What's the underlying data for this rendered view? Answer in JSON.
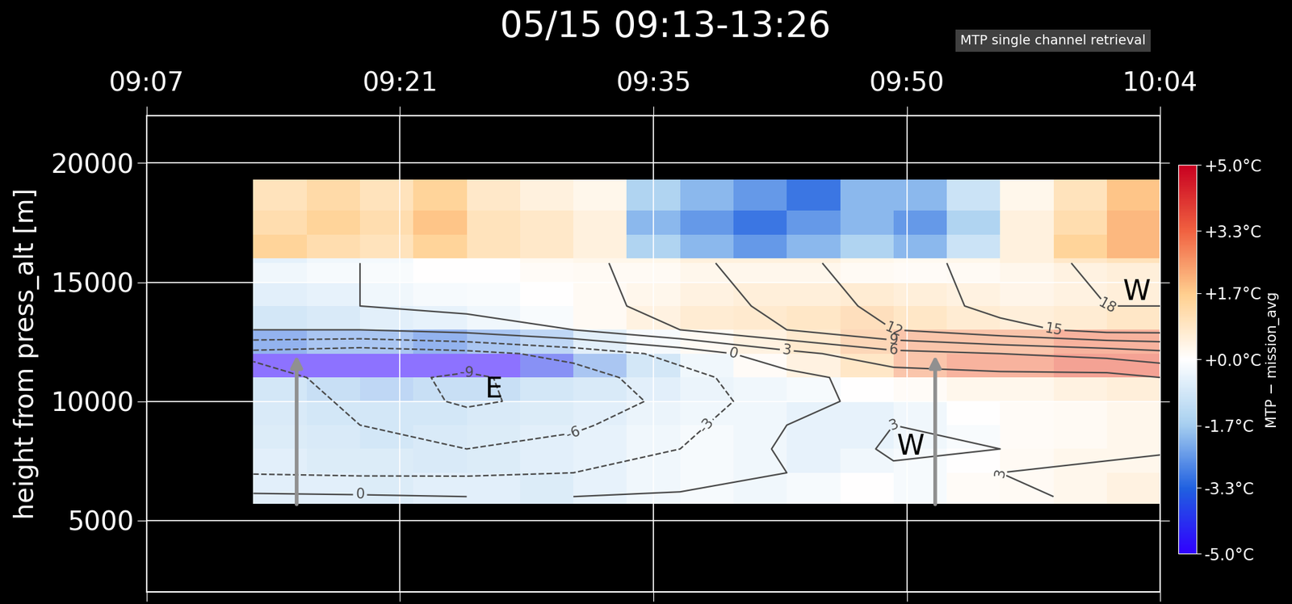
{
  "chart_data": {
    "type": "heatmap",
    "title": "05/15 09:13-13:26",
    "subtitle": "MTP single channel retrieval",
    "y_label": "height from press_alt [m]",
    "colorbar_label": "MTP − mission_avg",
    "xlim": [
      7,
      64
    ],
    "xticks": [
      {
        "value": 7,
        "label": "09:07"
      },
      {
        "value": 21.25,
        "label": "09:21"
      },
      {
        "value": 35.5,
        "label": "09:35"
      },
      {
        "value": 49.75,
        "label": "09:50"
      },
      {
        "value": 64,
        "label": "10:04"
      }
    ],
    "ylim": [
      2000,
      22000
    ],
    "yticks": [
      5000,
      10000,
      15000,
      20000
    ],
    "grid": true,
    "x_edges": [
      13,
      16,
      19,
      22,
      25,
      28,
      31,
      34,
      37,
      40,
      43,
      46,
      49,
      52,
      55,
      58,
      61,
      64
    ],
    "y_edges": [
      5700,
      7000,
      8000,
      9000,
      10000,
      11000,
      12000,
      13000,
      14000,
      15000,
      16000,
      17000,
      18000,
      19300
    ],
    "cells": [
      [
        -1,
        -1,
        -1.2,
        -1,
        -1,
        -1.2,
        -0.8,
        -0.5,
        -0.3,
        -0.5,
        -0.3,
        0,
        -0.3,
        0.2,
        0.3,
        0.5,
        0.8
      ],
      [
        -1,
        -1.2,
        -1.2,
        -1.3,
        -1.2,
        -1,
        -0.8,
        -0.5,
        -0.3,
        -0.5,
        -0.8,
        -0.5,
        -0.3,
        0,
        0.3,
        0.5,
        0.5
      ],
      [
        -1.2,
        -1.3,
        -1.5,
        -1.3,
        -1.2,
        -1,
        -0.8,
        -0.5,
        -0.3,
        -0.5,
        -0.8,
        -0.8,
        -0.5,
        -0.2,
        0.2,
        0.3,
        0.5
      ],
      [
        -1.3,
        -1.5,
        -1.5,
        -1.5,
        -1.3,
        -1.2,
        -1,
        -0.7,
        -0.5,
        -0.5,
        -0.8,
        -0.8,
        -0.5,
        0,
        0.2,
        0.3,
        0.5
      ],
      [
        -1.5,
        -1.8,
        -2,
        -1.8,
        -1.8,
        -1.5,
        -1.3,
        -1,
        -0.7,
        -0.5,
        -0.3,
        0,
        0.2,
        0.5,
        0.5,
        0.8,
        1
      ],
      [
        -5,
        -5,
        -5,
        -5,
        -5,
        -4,
        -2.5,
        -1.5,
        -0.5,
        0.2,
        0.8,
        1.5,
        2.5,
        3,
        3,
        3.5,
        3.5
      ],
      [
        -3,
        -2.5,
        -2.5,
        -3,
        -2.5,
        -2,
        -1,
        -0.3,
        0.3,
        0.8,
        1.3,
        2,
        2.5,
        2.5,
        2.5,
        3,
        3
      ],
      [
        -1.5,
        -1.3,
        -1,
        -0.8,
        -0.5,
        -0.2,
        0.3,
        0.8,
        1.2,
        1.3,
        1.5,
        1.8,
        1.5,
        1.2,
        1,
        1.2,
        1.5
      ],
      [
        -1,
        -0.8,
        -0.5,
        -0.3,
        -0.2,
        0,
        0.3,
        0.5,
        0.8,
        1,
        1,
        1.2,
        1,
        0.8,
        0.6,
        0.8,
        1
      ],
      [
        -0.5,
        -0.3,
        -0.2,
        0,
        0,
        0.2,
        0.3,
        0.3,
        0.5,
        0.5,
        0.5,
        0.3,
        0.2,
        0.3,
        0.5,
        0.8,
        1
      ],
      [
        1.5,
        1.2,
        1,
        1.5,
        1,
        0.8,
        0.5,
        -1.5,
        -2,
        -2.5,
        -2,
        -1.5,
        -2,
        -1,
        0.5,
        1.5,
        2
      ],
      [
        1.2,
        1.5,
        1.2,
        1.8,
        1,
        0.8,
        0.5,
        -2,
        -2.5,
        -3,
        -2.5,
        -2,
        -2.5,
        -1.5,
        0.5,
        1.2,
        2
      ],
      [
        1,
        1.3,
        1,
        1.5,
        0.8,
        0.5,
        0.3,
        -1.5,
        -2,
        -2.5,
        -3,
        -2,
        -2,
        -1,
        0.3,
        1,
        1.8
      ]
    ],
    "color_range": [
      -5,
      5
    ],
    "colorbar_ticks": [
      {
        "value": 5,
        "label": "+5.0°C"
      },
      {
        "value": 3.3,
        "label": "+3.3°C"
      },
      {
        "value": 1.7,
        "label": "+1.7°C"
      },
      {
        "value": 0,
        "label": "+0.0°C"
      },
      {
        "value": -1.7,
        "label": "-1.7°C"
      },
      {
        "value": -3.3,
        "label": "-3.3°C"
      },
      {
        "value": -5,
        "label": "-5.0°C"
      }
    ],
    "contours": {
      "x": [
        13,
        19,
        25,
        31,
        37,
        43,
        49,
        55,
        61,
        64
      ],
      "y": [
        6000,
        7000,
        8000,
        9000,
        10000,
        11000,
        12000,
        13000,
        14000,
        15800
      ],
      "values": [
        [
          0.5,
          0.3,
          0,
          0,
          0.5,
          1,
          1.5,
          2,
          4,
          6
        ],
        [
          -3.2,
          -3.5,
          -3.5,
          -3,
          -2,
          0,
          2.5,
          3,
          3.5,
          4.5
        ],
        [
          -4,
          -5,
          -6,
          -5,
          -3,
          0.5,
          3.5,
          3,
          2.5,
          2.5
        ],
        [
          -3.5,
          -6,
          -7.5,
          -6.5,
          -4,
          0,
          3,
          2,
          1.5,
          2
        ],
        [
          -3,
          -7,
          -9.5,
          -8,
          -5,
          -1,
          1,
          1,
          1,
          1
        ],
        [
          -4,
          -8,
          -9.5,
          -7.5,
          -4,
          -1,
          1.5,
          2,
          2,
          3
        ],
        [
          -7,
          -8,
          -7,
          -5,
          -2,
          2,
          5,
          6,
          7,
          8
        ],
        [
          0,
          0,
          1,
          3,
          6,
          9,
          12,
          14,
          16,
          16
        ],
        [
          2,
          3,
          4,
          5,
          7,
          10,
          13,
          16,
          18,
          18
        ],
        [
          2,
          3,
          4,
          5,
          8,
          11,
          14,
          16,
          19,
          19
        ]
      ],
      "levels": [
        -9,
        -6,
        -3,
        0,
        3,
        6,
        9,
        12,
        15,
        18
      ]
    },
    "annotations": [
      "E",
      "W",
      "W"
    ]
  }
}
